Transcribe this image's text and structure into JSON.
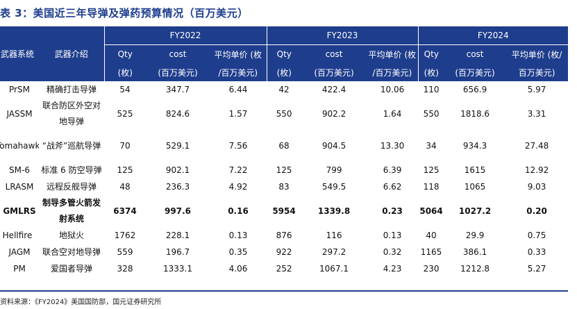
{
  "title": "表 3：美国近三年导弹及弹药预算情况（百万美元）",
  "header": {
    "col_system": "武器系统",
    "col_intro": "武器介绍",
    "years": [
      "FY2022",
      "FY2023",
      "FY2024"
    ],
    "qty_top": "Qty",
    "qty_bottom": "(枚)",
    "cost_top": "cost",
    "cost_bottom": "(百万美元)",
    "unit_top": "平均单价 (枚",
    "unit_bottom": "/百万美元)",
    "unit_top_last": "平均单价 (枚/",
    "unit_bottom_last": "百万美元)"
  },
  "rows": [
    {
      "system": "PrSM",
      "intro": "精确打击导弹",
      "q22": "54",
      "c22": "347.7",
      "u22": "6.44",
      "q23": "42",
      "c23": "422.4",
      "u23": "10.06",
      "q24": "110",
      "c24": "656.9",
      "u24": "5.97"
    },
    {
      "system": "JASSM",
      "intro": "联合防区外空对地导弹",
      "q22": "525",
      "c22": "824.6",
      "u22": "1.57",
      "q23": "550",
      "c23": "902.2",
      "u23": "1.64",
      "q24": "550",
      "c24": "1818.6",
      "u24": "3.31"
    },
    {
      "system": "Tomahawk",
      "intro": "“战斧”巡航导弹",
      "q22": "70",
      "c22": "529.1",
      "u22": "7.56",
      "q23": "68",
      "c23": "904.5",
      "u23": "13.30",
      "q24": "34",
      "c24": "934.3",
      "u24": "27.48"
    },
    {
      "system": "SM-6",
      "intro": "标准 6 防空导弹",
      "q22": "125",
      "c22": "902.1",
      "u22": "7.22",
      "q23": "125",
      "c23": "799",
      "u23": "6.39",
      "q24": "125",
      "c24": "1615",
      "u24": "12.92"
    },
    {
      "system": "LRASM",
      "intro": "远程反舰导弹",
      "q22": "48",
      "c22": "236.3",
      "u22": "4.92",
      "q23": "83",
      "c23": "549.5",
      "u23": "6.62",
      "q24": "118",
      "c24": "1065",
      "u24": "9.03"
    },
    {
      "system": "GMLRS",
      "intro": "制导多管火箭发射系统",
      "q22": "6374",
      "c22": "997.6",
      "u22": "0.16",
      "q23": "5954",
      "c23": "1339.8",
      "u23": "0.23",
      "q24": "5064",
      "c24": "1027.2",
      "u24": "0.20"
    },
    {
      "system": "Hellfire",
      "intro": "地狱火",
      "q22": "1762",
      "c22": "228.1",
      "u22": "0.13",
      "q23": "876",
      "c23": "116",
      "u23": "0.13",
      "q24": "40",
      "c24": "29.9",
      "u24": "0.75"
    },
    {
      "system": "JAGM",
      "intro": "联合空对地导弹",
      "q22": "559",
      "c22": "196.7",
      "u22": "0.35",
      "q23": "922",
      "c23": "297.2",
      "u23": "0.32",
      "q24": "1165",
      "c24": "386.1",
      "u24": "0.33"
    },
    {
      "system": "PM",
      "intro": "爱国者导弹",
      "q22": "328",
      "c22": "1333.1",
      "u22": "4.06",
      "q23": "252",
      "c23": "1067.1",
      "u23": "4.23",
      "q24": "230",
      "c24": "1212.8",
      "u24": "5.27"
    }
  ],
  "source": "资料来源：《FY2024》美国国防部，国元证券研究所"
}
